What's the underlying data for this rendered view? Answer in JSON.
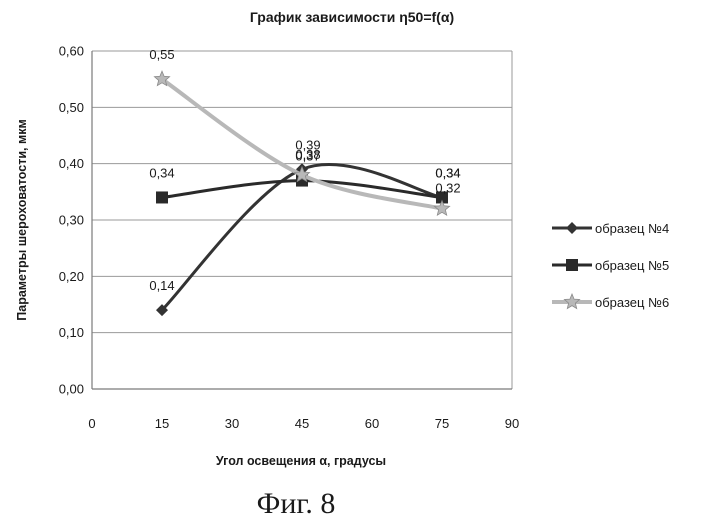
{
  "chart_data": {
    "type": "line",
    "title": "График зависимости η50=f(α)",
    "xlabel": "Угол освещения α, градусы",
    "ylabel": "Параметры шероховатости, мкм",
    "xlim": [
      0,
      90
    ],
    "ylim": [
      0,
      0.6
    ],
    "x_ticks": [
      "0",
      "15",
      "30",
      "45",
      "60",
      "75",
      "90"
    ],
    "y_ticks": [
      "0,00",
      "0,10",
      "0,20",
      "0,30",
      "0,40",
      "0,50",
      "0,60"
    ],
    "grid": true,
    "legend_position": "right",
    "x": [
      15,
      45,
      75
    ],
    "series": [
      {
        "name": "образец №4",
        "values": [
          0.14,
          0.39,
          0.34
        ],
        "labels": [
          "0,14",
          "0,39",
          "0,34"
        ],
        "color": "#333333",
        "marker": "diamond"
      },
      {
        "name": "образец №5",
        "values": [
          0.34,
          0.37,
          0.34
        ],
        "labels": [
          "0,34",
          "0,37",
          "0,34"
        ],
        "color": "#2a2a2a",
        "marker": "square"
      },
      {
        "name": "образец №6",
        "values": [
          0.55,
          0.38,
          0.32
        ],
        "labels": [
          "0,55",
          "0,38",
          "0,32"
        ],
        "color": "#b8b8b8",
        "marker": "star"
      }
    ]
  },
  "caption": "Фиг. 8"
}
